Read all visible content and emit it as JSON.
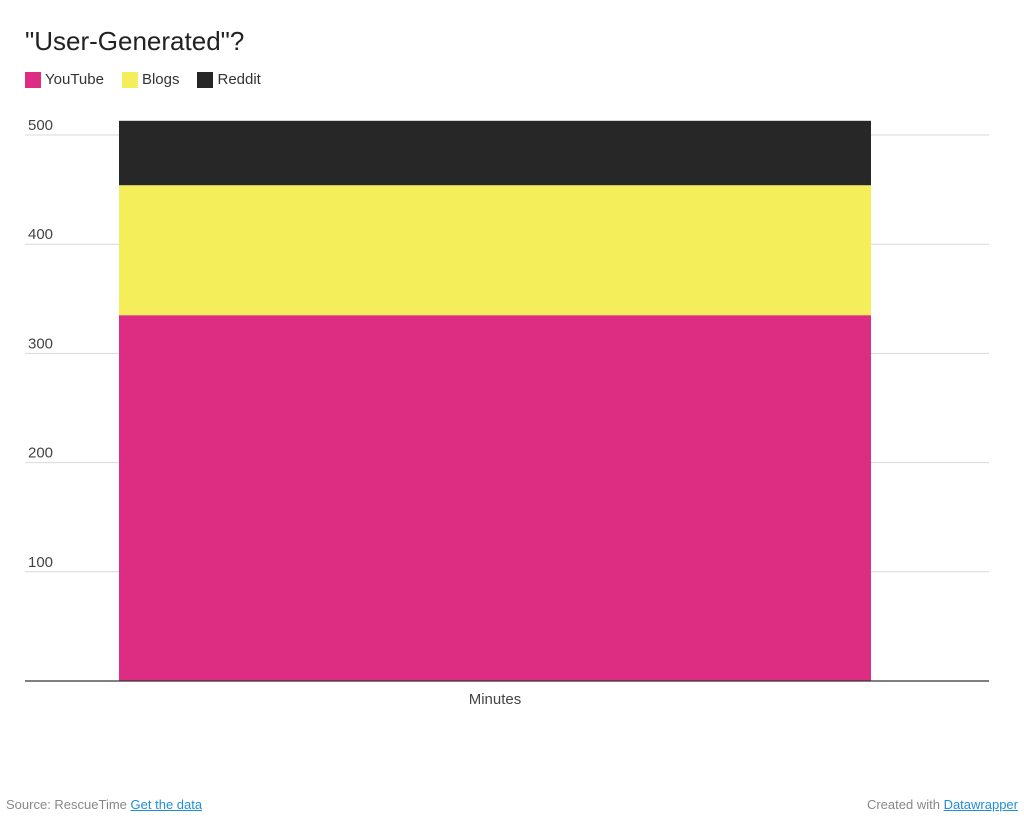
{
  "chart_data": {
    "type": "bar",
    "stacked": true,
    "title": "\"User-Generated\"?",
    "categories": [
      "Minutes"
    ],
    "series": [
      {
        "name": "YouTube",
        "values": [
          335
        ],
        "color": "#dc2d83"
      },
      {
        "name": "Blogs",
        "values": [
          119
        ],
        "color": "#f5ee5b"
      },
      {
        "name": "Reddit",
        "values": [
          59
        ],
        "color": "#272727"
      }
    ],
    "ylim": [
      0,
      510
    ],
    "yticks": [
      100,
      200,
      300,
      400,
      500
    ],
    "ytick_labels": [
      "100",
      "200",
      "300",
      "400",
      "500"
    ],
    "grid": true,
    "legend_position": "top-left"
  },
  "footer": {
    "source_label": "Source: RescueTime",
    "get_data_link": "Get the data",
    "created_with": "Created with",
    "datawrapper_link": "Datawrapper"
  }
}
